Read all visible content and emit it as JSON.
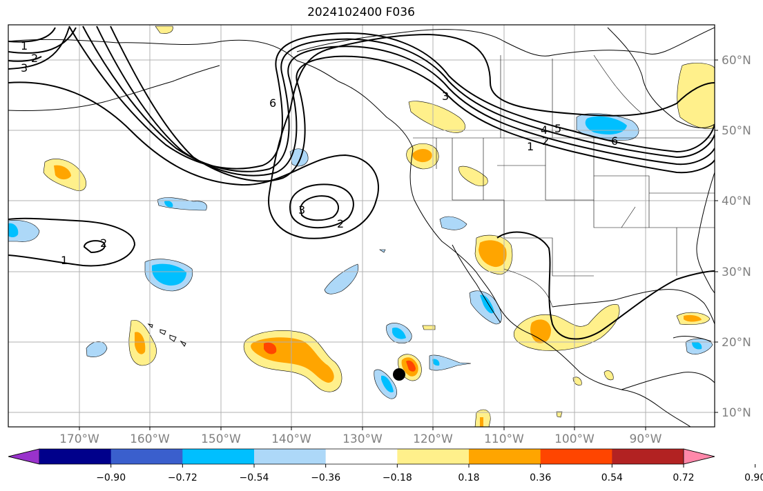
{
  "title": "2024102400 F036",
  "map": {
    "lat_labels": [
      "60°N",
      "50°N",
      "40°N",
      "30°N",
      "20°N",
      "10°N"
    ],
    "lon_labels": [
      "170°W",
      "160°W",
      "150°W",
      "140°W",
      "130°W",
      "120°W",
      "110°W",
      "100°W",
      "90°W"
    ],
    "marker": "black-dot",
    "gridlines": true
  },
  "colorbar": {
    "labels": [
      "−0.90",
      "−0.72",
      "−0.54",
      "−0.36",
      "−0.18",
      "0.18",
      "0.36",
      "0.54",
      "0.72",
      "0.90"
    ],
    "colors": [
      "#9932cc",
      "#00008b",
      "#3a5fcd",
      "#00bfff",
      "#add8f8",
      "#ffffff",
      "#fff08b",
      "#ffa500",
      "#ff4500",
      "#b22222",
      "#ff88aa"
    ]
  },
  "contour_labels": [
    "1",
    "2",
    "3",
    "6",
    "3",
    "4",
    "5",
    "6",
    "1",
    "2",
    "3",
    "2",
    "2",
    "1"
  ],
  "fill_colors": {
    "yellow": "#fff08b",
    "orange": "#ffa500",
    "red": "#ff4500",
    "light_blue": "#add8f8",
    "blue": "#00bfff"
  }
}
